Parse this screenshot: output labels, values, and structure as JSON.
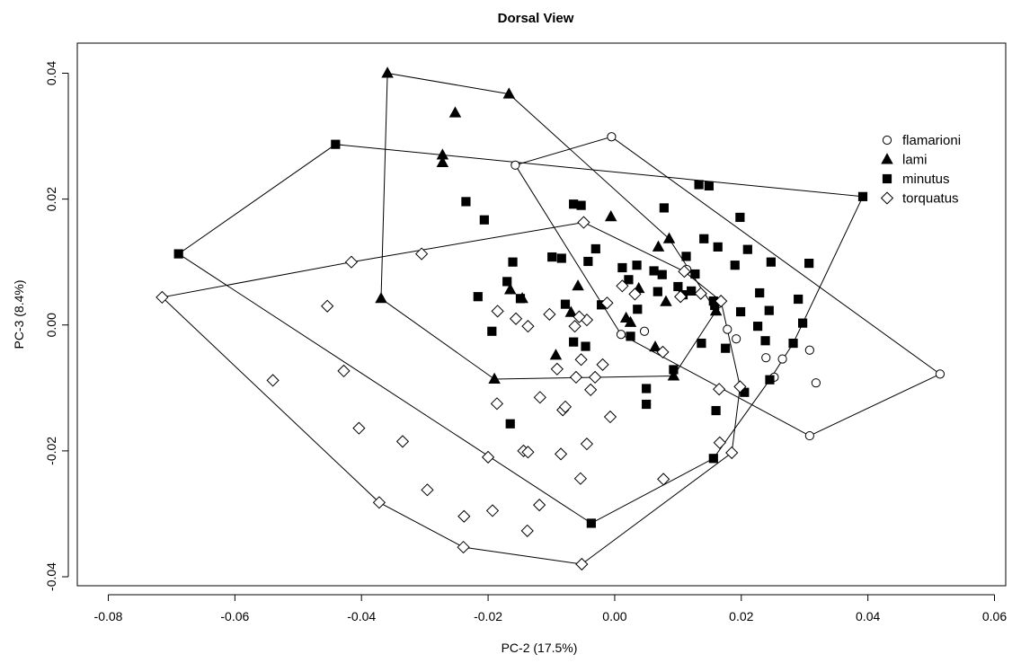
{
  "chart_data": {
    "type": "scatter",
    "title": "Dorsal View",
    "xlabel": "PC-2 (17.5%)",
    "ylabel": "PC-3 (8.4%)",
    "xlim": [
      -0.085,
      0.06
    ],
    "ylim": [
      -0.041,
      0.041
    ],
    "xticks": [
      -0.08,
      -0.06,
      -0.04,
      -0.02,
      0.0,
      0.02,
      0.04,
      0.06
    ],
    "xtick_labels": [
      "-0.08",
      "-0.06",
      "-0.04",
      "-0.02",
      "0.00",
      "0.02",
      "0.04",
      "0.06"
    ],
    "yticks": [
      -0.04,
      -0.02,
      0.0,
      0.02,
      0.04
    ],
    "ytick_labels": [
      "-0.04",
      "-0.02",
      "0.00",
      "0.02",
      "0.04"
    ],
    "grid": false,
    "legend_position": "top-right",
    "convex_hulls": true,
    "series": [
      {
        "name": "flamarioni",
        "marker": "open-circle",
        "points": [
          [
            -0.0157,
            0.0254
          ],
          [
            -0.0005,
            0.0299
          ],
          [
            0.0514,
            -0.0078
          ],
          [
            0.0308,
            -0.0176
          ],
          [
            0.0318,
            -0.0092
          ],
          [
            0.0252,
            -0.0083
          ],
          [
            0.0308,
            -0.004
          ],
          [
            0.0265,
            -0.0054
          ],
          [
            0.0239,
            -0.0052
          ],
          [
            0.0192,
            -0.0022
          ],
          [
            0.0178,
            -0.0007
          ],
          [
            0.001,
            -0.0015
          ],
          [
            0.0047,
            -0.001
          ],
          [
            0.0114,
            0.0088
          ],
          [
            0.0164,
            0.0034
          ]
        ]
      },
      {
        "name": "lami",
        "marker": "filled-triangle",
        "points": [
          [
            -0.0359,
            0.04
          ],
          [
            -0.0167,
            0.0367
          ],
          [
            -0.0252,
            0.0337
          ],
          [
            -0.0272,
            0.027
          ],
          [
            -0.0272,
            0.0258
          ],
          [
            -0.0369,
            0.0042
          ],
          [
            -0.019,
            -0.0086
          ],
          [
            0.0093,
            -0.0081
          ],
          [
            -0.0006,
            0.0172
          ],
          [
            0.0086,
            0.0137
          ],
          [
            0.0069,
            0.0124
          ],
          [
            -0.0058,
            0.0062
          ],
          [
            0.0038,
            0.0058
          ],
          [
            -0.0165,
            0.0056
          ],
          [
            -0.0146,
            0.0042
          ],
          [
            -0.0069,
            0.002
          ],
          [
            0.0018,
            0.0011
          ],
          [
            0.0025,
            0.0004
          ],
          [
            0.0064,
            -0.0035
          ],
          [
            -0.0093,
            -0.0048
          ],
          [
            0.0081,
            0.0037
          ],
          [
            0.016,
            0.0022
          ]
        ]
      },
      {
        "name": "minutus",
        "marker": "filled-square",
        "points": [
          [
            -0.0441,
            0.0287
          ],
          [
            0.0392,
            0.0204
          ],
          [
            -0.0689,
            0.0113
          ],
          [
            -0.0037,
            -0.0315
          ],
          [
            0.0156,
            -0.0212
          ],
          [
            -0.0235,
            0.0196
          ],
          [
            -0.0206,
            0.0167
          ],
          [
            -0.0065,
            0.0192
          ],
          [
            -0.0053,
            0.019
          ],
          [
            0.0133,
            0.0223
          ],
          [
            0.0149,
            0.0221
          ],
          [
            0.0078,
            0.0186
          ],
          [
            0.0198,
            0.0171
          ],
          [
            -0.0099,
            0.0108
          ],
          [
            -0.0084,
            0.0106
          ],
          [
            -0.0042,
            0.0101
          ],
          [
            -0.0161,
            0.01
          ],
          [
            -0.003,
            0.0121
          ],
          [
            0.0012,
            0.0091
          ],
          [
            0.0062,
            0.0086
          ],
          [
            0.0113,
            0.0109
          ],
          [
            0.0141,
            0.0137
          ],
          [
            0.021,
            0.012
          ],
          [
            0.0247,
            0.01
          ],
          [
            0.0307,
            0.0098
          ],
          [
            0.029,
            0.0041
          ],
          [
            0.0297,
            0.0003
          ],
          [
            0.0229,
            0.0051
          ],
          [
            -0.017,
            0.0069
          ],
          [
            -0.0216,
            0.0045
          ],
          [
            -0.0149,
            0.0042
          ],
          [
            -0.0078,
            0.0033
          ],
          [
            0.0036,
            0.0025
          ],
          [
            0.0068,
            0.0053
          ],
          [
            0.0108,
            0.0048
          ],
          [
            0.0156,
            0.0038
          ],
          [
            0.0199,
            0.0021
          ],
          [
            0.0244,
            0.0023
          ],
          [
            0.0226,
            -0.0002
          ],
          [
            0.0282,
            -0.0029
          ],
          [
            -0.0194,
            -0.001
          ],
          [
            -0.0065,
            -0.0027
          ],
          [
            -0.0046,
            -0.0034
          ],
          [
            0.0025,
            -0.0018
          ],
          [
            0.0093,
            -0.0071
          ],
          [
            0.0175,
            -0.0037
          ],
          [
            0.0238,
            -0.0025
          ],
          [
            0.0245,
            -0.0087
          ],
          [
            0.005,
            -0.0101
          ],
          [
            0.005,
            -0.0126
          ],
          [
            0.0137,
            -0.0029
          ],
          [
            0.016,
            -0.0136
          ],
          [
            -0.0165,
            -0.0157
          ],
          [
            0.0205,
            -0.0107
          ],
          [
            0.0158,
            0.0031
          ],
          [
            0.0075,
            0.008
          ],
          [
            0.0035,
            0.0095
          ],
          [
            -0.0021,
            0.0032
          ],
          [
            0.0022,
            0.0072
          ],
          [
            0.01,
            0.0061
          ],
          [
            0.0121,
            0.0054
          ],
          [
            0.0163,
            0.0124
          ],
          [
            0.0127,
            0.0081
          ],
          [
            0.019,
            0.0095
          ]
        ]
      },
      {
        "name": "torquatus",
        "marker": "open-diamond",
        "points": [
          [
            -0.0715,
            0.0044
          ],
          [
            -0.0372,
            -0.0282
          ],
          [
            -0.0239,
            -0.0353
          ],
          [
            -0.0052,
            -0.038
          ],
          [
            0.0185,
            -0.0203
          ],
          [
            0.0198,
            -0.0098
          ],
          [
            0.0168,
            0.0038
          ],
          [
            -0.0049,
            0.0163
          ],
          [
            -0.0416,
            0.01
          ],
          [
            -0.0305,
            0.0113
          ],
          [
            -0.0454,
            0.003
          ],
          [
            -0.0428,
            -0.0073
          ],
          [
            -0.054,
            -0.0088
          ],
          [
            -0.0404,
            -0.0164
          ],
          [
            -0.0335,
            -0.0185
          ],
          [
            -0.0296,
            -0.0262
          ],
          [
            -0.0238,
            -0.0304
          ],
          [
            -0.0193,
            -0.0295
          ],
          [
            -0.0138,
            -0.0327
          ],
          [
            -0.0119,
            -0.0286
          ],
          [
            -0.02,
            -0.021
          ],
          [
            -0.0144,
            -0.02
          ],
          [
            -0.0137,
            -0.0202
          ],
          [
            -0.0085,
            -0.0205
          ],
          [
            -0.0044,
            -0.0189
          ],
          [
            -0.0054,
            -0.0244
          ],
          [
            0.0077,
            -0.0245
          ],
          [
            0.0166,
            -0.0187
          ],
          [
            -0.0186,
            -0.0125
          ],
          [
            -0.0118,
            -0.0115
          ],
          [
            -0.0082,
            -0.0135
          ],
          [
            -0.0078,
            -0.013
          ],
          [
            -0.0038,
            -0.0103
          ],
          [
            -0.0031,
            -0.0083
          ],
          [
            -0.0053,
            -0.0055
          ],
          [
            -0.0061,
            -0.0083
          ],
          [
            -0.0091,
            -0.007
          ],
          [
            -0.0007,
            -0.0146
          ],
          [
            -0.0019,
            -0.0063
          ],
          [
            0.0165,
            -0.0102
          ],
          [
            0.0076,
            -0.0043
          ],
          [
            -0.0044,
            0.0008
          ],
          [
            -0.0063,
            -0.0002
          ],
          [
            -0.0056,
            0.0013
          ],
          [
            -0.0103,
            0.0017
          ],
          [
            -0.0137,
            -0.0002
          ],
          [
            -0.0156,
            0.001
          ],
          [
            -0.0185,
            0.0022
          ],
          [
            0.0012,
            0.0062
          ],
          [
            -0.0012,
            0.0035
          ],
          [
            0.0136,
            0.005
          ],
          [
            0.0104,
            0.0045
          ],
          [
            0.0032,
            0.0049
          ],
          [
            0.011,
            0.0085
          ]
        ]
      }
    ]
  }
}
